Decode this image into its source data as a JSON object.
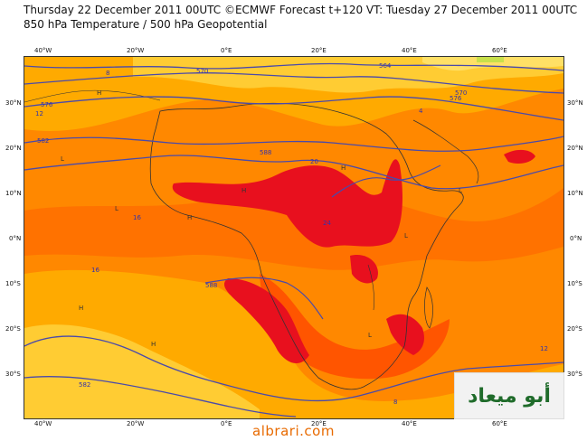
{
  "header": {
    "title": "Thursday 22 December 2011 00UTC ©ECMWF Forecast t+120 VT: Tuesday 27 December 2011 00UTC",
    "subtitle": "850 hPa Temperature / 500 hPa Geopotential"
  },
  "axes": {
    "lon_labels": [
      "40°W",
      "20°W",
      "0°E",
      "20°E",
      "40°E",
      "60°E"
    ],
    "lat_labels": [
      "30°N",
      "20°N",
      "10°N",
      "0°N",
      "10°S",
      "20°S",
      "30°S"
    ]
  },
  "contour_labels": [
    "570",
    "576",
    "582",
    "588",
    "576",
    "570",
    "564",
    "582",
    "588"
  ],
  "temperature_labels": [
    "8",
    "12",
    "4",
    "16",
    "20",
    "24",
    "16",
    "12",
    "8"
  ],
  "pressure_markers": [
    "H",
    "L"
  ],
  "colors": {
    "cold": "#ffe066",
    "cool": "#ffcc33",
    "mild": "#ffaa00",
    "warm": "#ff8800",
    "hot": "#ff5500",
    "very_hot": "#e8101e",
    "contour": "#4a4aaa",
    "coast": "#333333"
  },
  "watermark": {
    "logo_text": "أبو ميعاد"
  },
  "footer": {
    "url": "albrari.com"
  }
}
